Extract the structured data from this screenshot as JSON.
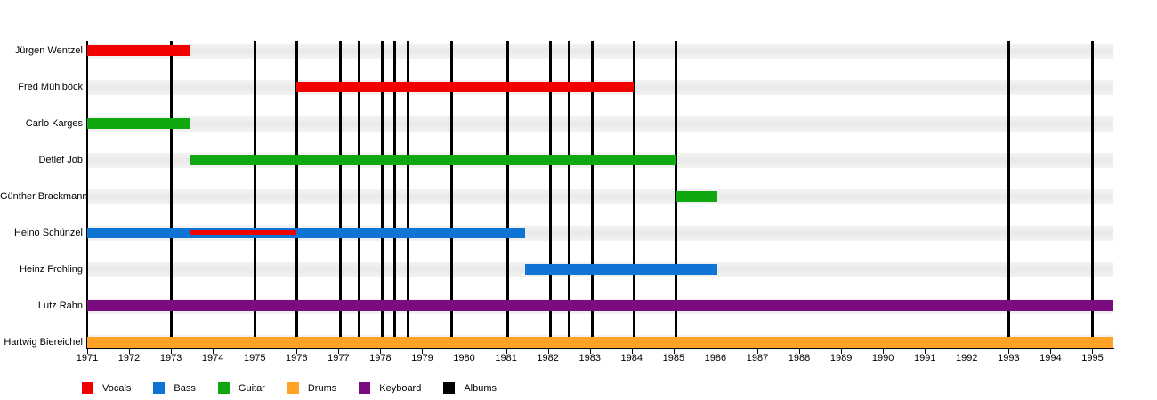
{
  "chart_data": {
    "type": "gantt-timeline",
    "title": "",
    "x_axis": {
      "min": 1971,
      "max": 1995.5,
      "ticks": [
        1971,
        1972,
        1973,
        1974,
        1975,
        1976,
        1977,
        1978,
        1979,
        1980,
        1981,
        1982,
        1983,
        1984,
        1985,
        1986,
        1987,
        1988,
        1989,
        1990,
        1991,
        1992,
        1993,
        1994,
        1995
      ]
    },
    "rows": [
      {
        "name": "Jürgen Wentzel",
        "segments": [
          {
            "role": "Vocals",
            "start": 1971.0,
            "end": 1973.45
          }
        ]
      },
      {
        "name": "Fred Mühlböck",
        "segments": [
          {
            "role": "Vocals",
            "start": 1976.0,
            "end": 1984.05
          }
        ]
      },
      {
        "name": "Carlo Karges",
        "segments": [
          {
            "role": "Guitar",
            "start": 1971.0,
            "end": 1973.45
          }
        ]
      },
      {
        "name": "Detlef Job",
        "segments": [
          {
            "role": "Guitar",
            "start": 1973.45,
            "end": 1985.05
          }
        ]
      },
      {
        "name": "Günther Brackmann",
        "segments": [
          {
            "role": "Guitar",
            "start": 1985.05,
            "end": 1986.05
          }
        ]
      },
      {
        "name": "Heino Schünzel",
        "segments": [
          {
            "role": "Bass",
            "start": 1971.0,
            "end": 1981.45
          }
        ],
        "overlay": {
          "role": "Vocals",
          "start": 1973.45,
          "end": 1976.0
        }
      },
      {
        "name": "Heinz Frohling",
        "segments": [
          {
            "role": "Bass",
            "start": 1981.45,
            "end": 1986.05
          }
        ]
      },
      {
        "name": "Lutz Rahn",
        "segments": [
          {
            "role": "Keyboard",
            "start": 1971.0,
            "end": 1995.5
          }
        ]
      },
      {
        "name": "Hartwig Biereichel",
        "segments": [
          {
            "role": "Drums",
            "start": 1971.0,
            "end": 1995.5
          }
        ]
      }
    ],
    "albums": [
      1973.0,
      1975.0,
      1976.0,
      1977.05,
      1977.5,
      1978.05,
      1978.35,
      1978.65,
      1979.7,
      1981.05,
      1982.05,
      1982.5,
      1983.05,
      1984.05,
      1985.05,
      1993.0,
      1995.0
    ],
    "role_colors": {
      "Vocals": "#f20000",
      "Bass": "#1074d4",
      "Guitar": "#10a810",
      "Drums": "#ffa226",
      "Keyboard": "#7b0c80",
      "Albums": "#000000"
    },
    "legend": [
      {
        "label": "Vocals",
        "color": "#f20000"
      },
      {
        "label": "Bass",
        "color": "#1074d4"
      },
      {
        "label": "Guitar",
        "color": "#10a810"
      },
      {
        "label": "Drums",
        "color": "#ffa226"
      },
      {
        "label": "Keyboard",
        "color": "#7b0c80"
      },
      {
        "label": "Albums",
        "color": "#000000"
      }
    ],
    "layout_hints": {
      "grid": "off",
      "row_stripes": "light-gray",
      "legend_position": "bottom-left",
      "album_marker_style": "vertical-black-line"
    }
  }
}
